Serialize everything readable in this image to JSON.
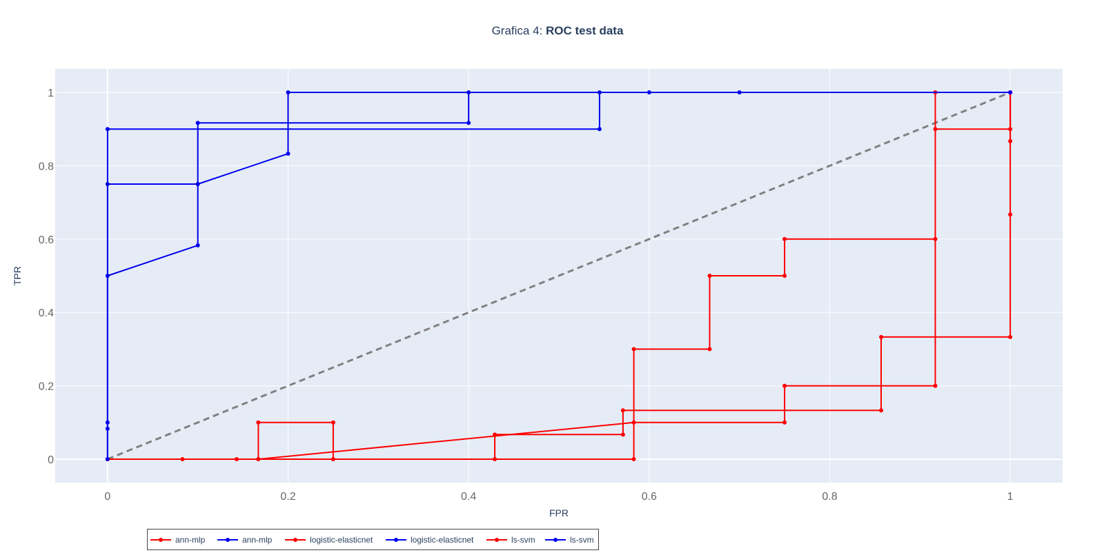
{
  "chart_data": {
    "type": "line",
    "title_prefix": "Grafica 4: ",
    "title_bold": "ROC test data",
    "xlabel": "FPR",
    "ylabel": "TPR",
    "xlim": [
      -0.058,
      1.058
    ],
    "ylim": [
      -0.064,
      1.064
    ],
    "x_ticks": [
      0,
      0.2,
      0.4,
      0.6,
      0.8,
      1
    ],
    "x_tick_labels": [
      "0",
      "0.2",
      "0.4",
      "0.6",
      "0.8",
      "1"
    ],
    "y_ticks": [
      0,
      0.2,
      0.4,
      0.6,
      0.8,
      1
    ],
    "y_tick_labels": [
      "0",
      "0.2",
      "0.4",
      "0.6",
      "0.8",
      "1"
    ],
    "grid": true,
    "legend_position": "bottom-left",
    "colors": {
      "train": "#ff0000",
      "test": "#0000ee",
      "diagonal": "#808080",
      "plot_bg": "#e5ecf6",
      "grid": "#ffffff",
      "text": "#2a3f5f",
      "tick_text": "#666666"
    },
    "diagonal": {
      "x": [
        0,
        1
      ],
      "y": [
        0,
        1
      ]
    },
    "series": [
      {
        "name": "ann-mlp",
        "color": "#ff0000",
        "x": [
          0,
          0.083,
          0.167,
          0.167,
          0.25,
          0.25,
          0.583,
          0.583,
          0.667,
          0.667,
          0.75,
          0.75,
          0.917,
          0.917,
          1,
          1
        ],
        "y": [
          0,
          0,
          0,
          0.1,
          0.1,
          0,
          0,
          0.3,
          0.3,
          0.5,
          0.5,
          0.6,
          0.6,
          0.9,
          0.9,
          1
        ]
      },
      {
        "name": "ann-mlp",
        "color": "#0000ee",
        "x": [
          0,
          0,
          0,
          0.1,
          0.1,
          0.2,
          0.2,
          0.6,
          0.7,
          1
        ],
        "y": [
          0,
          0.1,
          0.5,
          0.583,
          0.75,
          0.833,
          1,
          1,
          1,
          1
        ]
      },
      {
        "name": "logistic-elasticnet",
        "color": "#ff0000",
        "x": [
          0,
          0.143,
          0.429,
          0.429,
          0.571,
          0.571,
          0.857,
          0.857,
          1,
          1,
          1
        ],
        "y": [
          0,
          0,
          0,
          0.067,
          0.067,
          0.133,
          0.133,
          0.333,
          0.333,
          0.667,
          1
        ]
      },
      {
        "name": "logistic-elasticnet",
        "color": "#0000ee",
        "x": [
          0,
          0,
          0.1,
          0.1,
          0.4,
          0.4,
          1
        ],
        "y": [
          0,
          0.75,
          0.75,
          0.917,
          0.917,
          1,
          1
        ]
      },
      {
        "name": "ls-svm",
        "color": "#ff0000",
        "x": [
          0,
          0.167,
          0.583,
          0.75,
          0.75,
          0.917,
          0.917,
          1,
          1
        ],
        "y": [
          0,
          0,
          0.1,
          0.1,
          0.2,
          0.2,
          1,
          1,
          0.867
        ]
      },
      {
        "name": "ls-svm",
        "color": "#0000ee",
        "x": [
          0,
          0,
          0,
          0.545,
          0.545,
          1
        ],
        "y": [
          0,
          0.083,
          0.9,
          0.9,
          1,
          1
        ]
      }
    ]
  }
}
